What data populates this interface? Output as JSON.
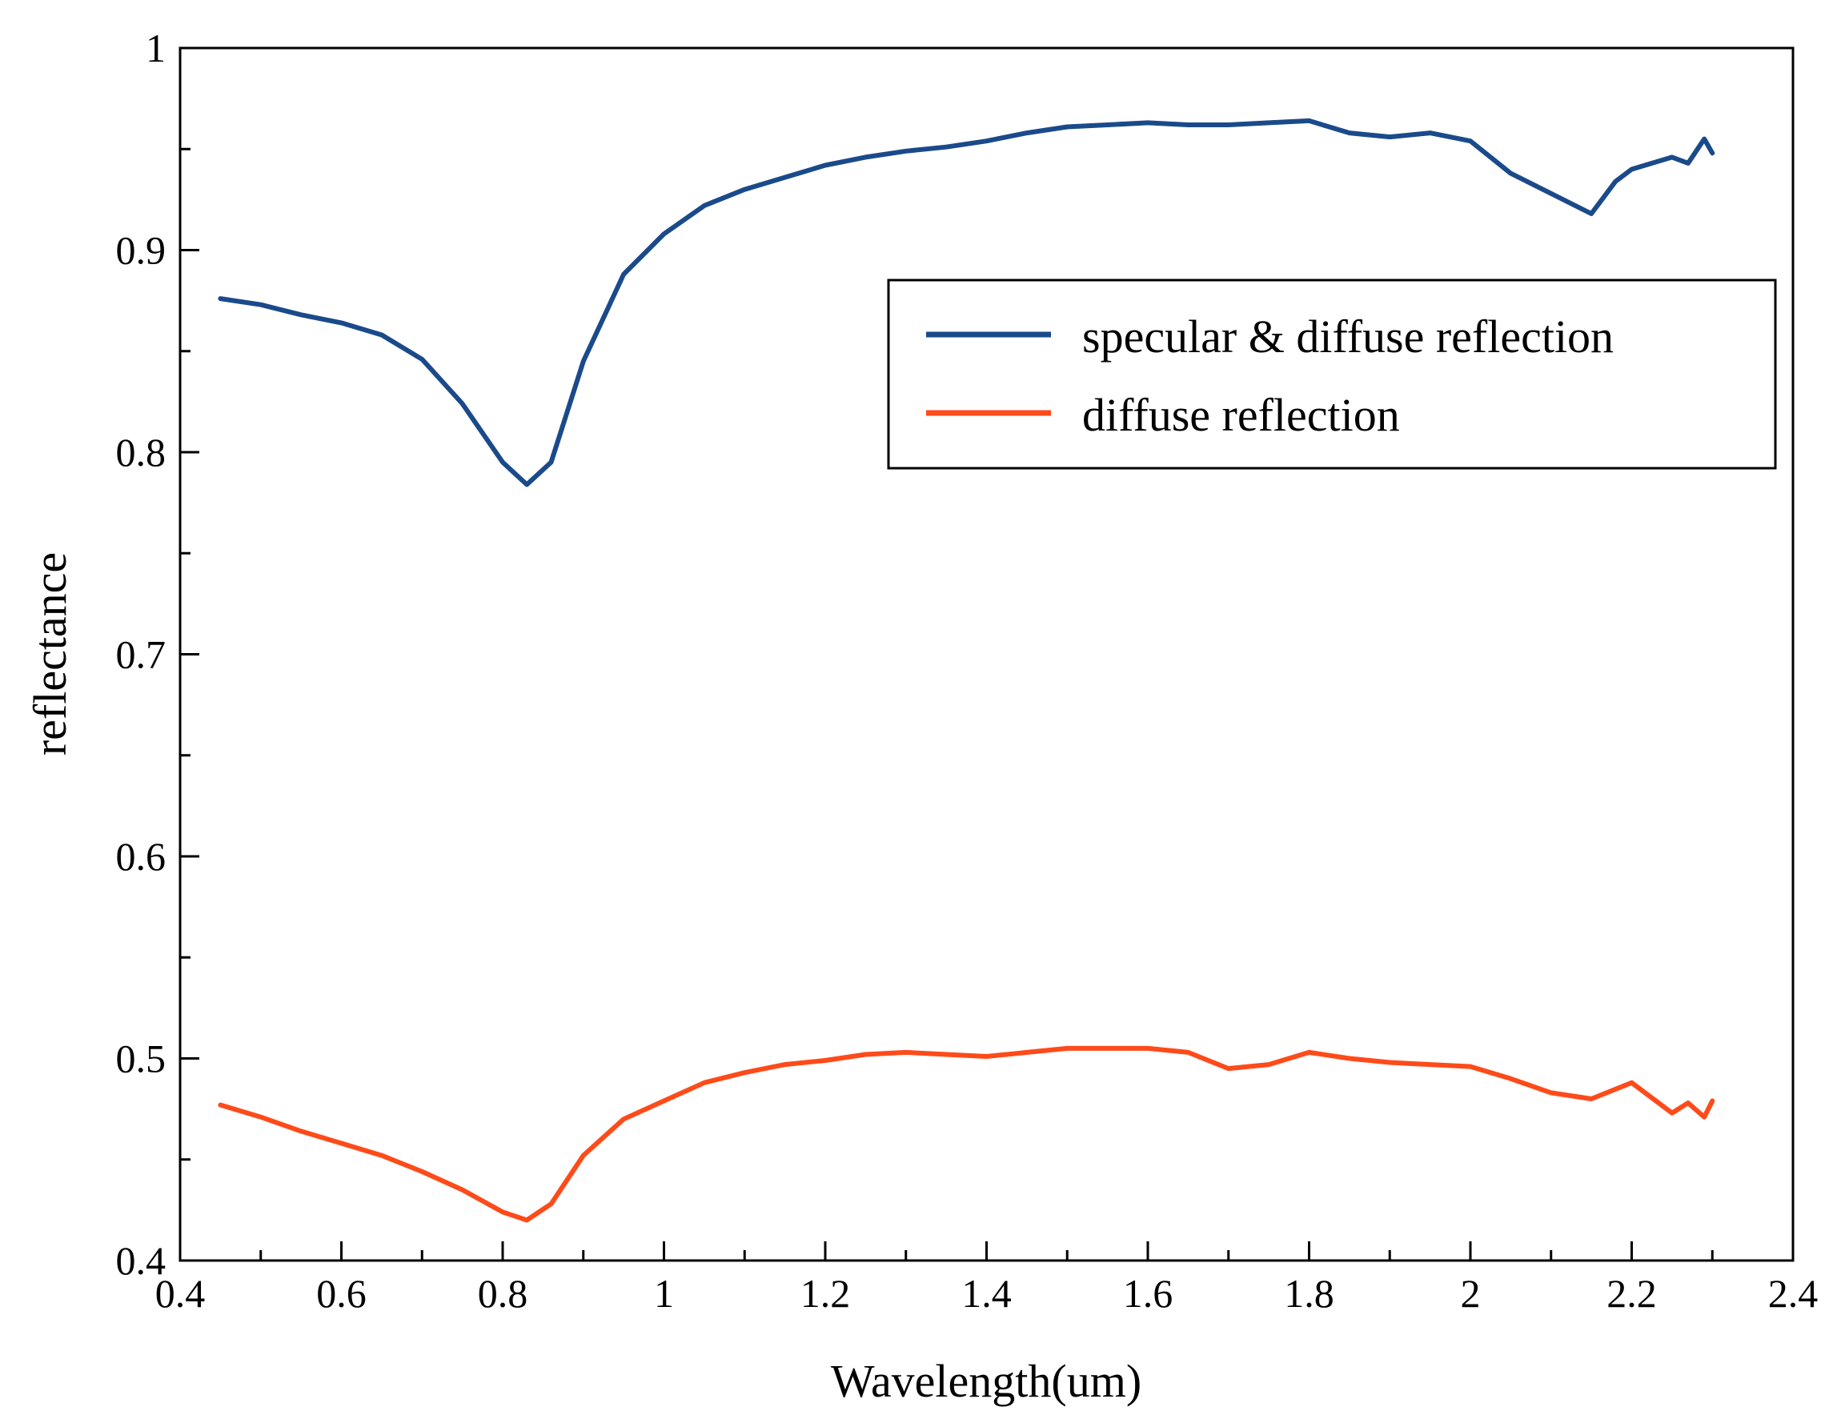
{
  "chart_data": {
    "type": "line",
    "xlabel": "Wavelength(um)",
    "ylabel": "reflectance",
    "xlim": [
      0.4,
      2.4
    ],
    "ylim": [
      0.4,
      1.0
    ],
    "x_ticks": [
      "0.4",
      "0.6",
      "0.8",
      "1",
      "1.2",
      "1.4",
      "1.6",
      "1.8",
      "2",
      "2.2",
      "2.4"
    ],
    "y_ticks": [
      "0.4",
      "0.5",
      "0.6",
      "0.7",
      "0.8",
      "0.9",
      "1"
    ],
    "grid": false,
    "legend_position": "top-right",
    "series": [
      {
        "name": "specular & diffuse reflection",
        "color": "#1a4a8a",
        "x": [
          0.45,
          0.5,
          0.55,
          0.6,
          0.65,
          0.7,
          0.75,
          0.8,
          0.83,
          0.86,
          0.9,
          0.95,
          1.0,
          1.05,
          1.1,
          1.15,
          1.2,
          1.25,
          1.3,
          1.35,
          1.4,
          1.45,
          1.5,
          1.55,
          1.6,
          1.65,
          1.7,
          1.75,
          1.8,
          1.85,
          1.9,
          1.95,
          2.0,
          2.05,
          2.1,
          2.13,
          2.15,
          2.18,
          2.2,
          2.25,
          2.27,
          2.29,
          2.3
        ],
        "y": [
          0.876,
          0.873,
          0.868,
          0.864,
          0.858,
          0.846,
          0.824,
          0.795,
          0.784,
          0.795,
          0.845,
          0.888,
          0.908,
          0.922,
          0.93,
          0.936,
          0.942,
          0.946,
          0.949,
          0.951,
          0.954,
          0.958,
          0.961,
          0.962,
          0.963,
          0.962,
          0.962,
          0.963,
          0.964,
          0.958,
          0.956,
          0.958,
          0.954,
          0.938,
          0.928,
          0.922,
          0.918,
          0.934,
          0.94,
          0.946,
          0.943,
          0.955,
          0.948
        ]
      },
      {
        "name": "diffuse reflection",
        "color": "#ff4a1a",
        "x": [
          0.45,
          0.5,
          0.55,
          0.6,
          0.65,
          0.7,
          0.75,
          0.8,
          0.83,
          0.86,
          0.9,
          0.95,
          1.0,
          1.05,
          1.1,
          1.15,
          1.2,
          1.25,
          1.3,
          1.35,
          1.4,
          1.45,
          1.5,
          1.55,
          1.6,
          1.65,
          1.7,
          1.75,
          1.8,
          1.85,
          1.9,
          1.95,
          2.0,
          2.05,
          2.1,
          2.15,
          2.2,
          2.25,
          2.27,
          2.29,
          2.3
        ],
        "y": [
          0.477,
          0.471,
          0.464,
          0.458,
          0.452,
          0.444,
          0.435,
          0.424,
          0.42,
          0.428,
          0.452,
          0.47,
          0.479,
          0.488,
          0.493,
          0.497,
          0.499,
          0.502,
          0.503,
          0.502,
          0.501,
          0.503,
          0.505,
          0.505,
          0.505,
          0.503,
          0.495,
          0.497,
          0.503,
          0.5,
          0.498,
          0.497,
          0.496,
          0.49,
          0.483,
          0.48,
          0.488,
          0.473,
          0.478,
          0.471,
          0.479
        ]
      }
    ]
  }
}
